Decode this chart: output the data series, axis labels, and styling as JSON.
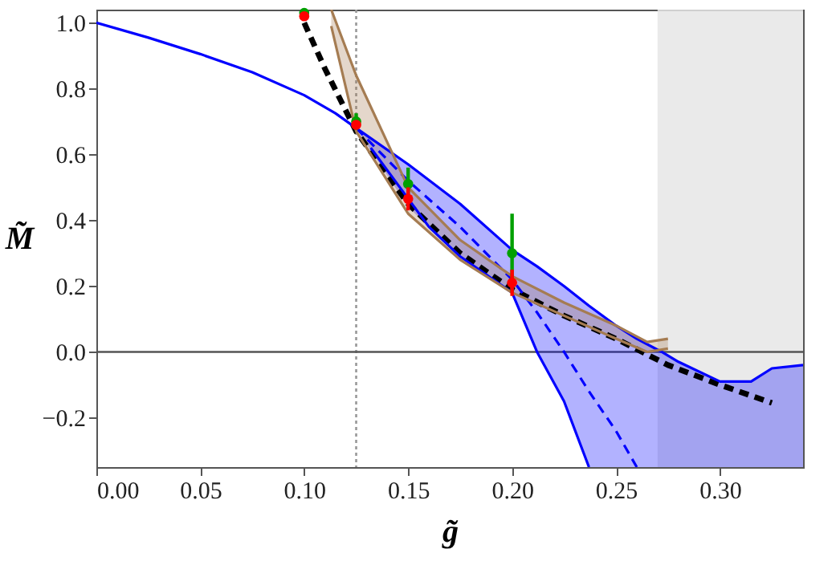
{
  "chart_data": {
    "type": "line",
    "xlabel": "g̃",
    "ylabel": "M̃",
    "xlim": [
      0,
      0.34
    ],
    "ylim": [
      -0.35,
      1.04
    ],
    "xticks": [
      {
        "value": 0,
        "label": "0.00"
      },
      {
        "value": 0.05,
        "label": "0.05"
      },
      {
        "value": 0.1,
        "label": "0.10"
      },
      {
        "value": 0.15,
        "label": "0.15"
      },
      {
        "value": 0.2,
        "label": "0.20"
      },
      {
        "value": 0.25,
        "label": "0.25"
      },
      {
        "value": 0.3,
        "label": "0.30"
      }
    ],
    "yticks": [
      {
        "value": -0.2,
        "label": "−0.2"
      },
      {
        "value": 0,
        "label": "0.0"
      },
      {
        "value": 0.2,
        "label": "0.2"
      },
      {
        "value": 0.4,
        "label": "0.4"
      },
      {
        "value": 0.6,
        "label": "0.6"
      },
      {
        "value": 0.8,
        "label": "0.8"
      },
      {
        "value": 1,
        "label": "1.0"
      }
    ],
    "grid": false,
    "legend": false,
    "bands": [
      {
        "axis": "x",
        "from": 0.27,
        "to": 0.34,
        "color": "#e6e6e6"
      }
    ],
    "ref_lines": [
      {
        "axis": "x",
        "value": 0.125,
        "color": "#999999",
        "line_style": "dotted"
      },
      {
        "axis": "y",
        "value": 0,
        "color": "#555555",
        "line_style": "solid"
      }
    ],
    "series": [
      {
        "color": "#000000",
        "line_style": "dashed",
        "x": [
          0.1,
          0.11,
          0.125,
          0.15,
          0.175,
          0.2,
          0.225,
          0.25,
          0.275,
          0.3,
          0.325
        ],
        "values": [
          1.0,
          0.86,
          0.67,
          0.45,
          0.3,
          0.19,
          0.11,
          0.04,
          -0.04,
          -0.1,
          -0.155
        ]
      },
      {
        "color": "#0000ff",
        "line_style": "solid",
        "x": [
          0,
          0.025,
          0.05,
          0.075,
          0.1,
          0.115,
          0.125
        ],
        "values": [
          1.0,
          0.955,
          0.905,
          0.85,
          0.78,
          0.725,
          0.68
        ]
      },
      {
        "color": "#0000ff",
        "line_style": "dashed",
        "x": [
          0.125,
          0.15,
          0.175,
          0.2,
          0.212,
          0.225,
          0.237,
          0.25,
          0.26,
          0.272,
          0.28,
          0.3,
          0.315,
          0.325,
          0.34
        ],
        "values": [
          0.68,
          0.52,
          0.38,
          0.22,
          0.12,
          0.0,
          -0.12,
          -0.24,
          -0.35,
          null,
          null,
          null,
          null,
          null,
          null
        ],
        "lower": [
          0.68,
          0.44,
          0.29,
          0.18,
          0.0,
          -0.15,
          -0.35,
          -0.35,
          -0.35,
          -0.35,
          -0.35,
          -0.35,
          -0.35,
          -0.35,
          -0.35
        ],
        "upper": [
          0.68,
          0.57,
          0.45,
          0.31,
          0.26,
          0.2,
          0.14,
          0.08,
          0.04,
          0.0,
          -0.03,
          -0.09,
          -0.09,
          -0.05,
          -0.04
        ]
      },
      {
        "color": "#0000ff",
        "line_style": "solid",
        "x": [
          0.132,
          0.16,
          0.175,
          0.2,
          0.212,
          0.225,
          0.237
        ],
        "values": [
          0.62,
          0.38,
          0.29,
          0.18,
          0.0,
          -0.15,
          -0.35
        ]
      },
      {
        "color": "#0000ff",
        "line_style": "solid",
        "x": [
          0.125,
          0.15,
          0.175,
          0.2,
          0.212,
          0.225,
          0.237,
          0.25,
          0.26,
          0.272,
          0.28,
          0.3,
          0.315,
          0.325,
          0.34
        ],
        "values": [
          0.68,
          0.57,
          0.45,
          0.31,
          0.26,
          0.2,
          0.14,
          0.08,
          0.04,
          0.0,
          -0.03,
          -0.09,
          -0.09,
          -0.05,
          -0.04
        ]
      },
      {
        "color": "#a57c52",
        "line_style": "solid",
        "x": [
          0.113,
          0.125,
          0.15,
          0.175,
          0.2,
          0.225,
          0.25,
          0.265,
          0.275
        ],
        "values": [
          0.99,
          0.67,
          0.42,
          0.28,
          0.18,
          0.11,
          0.04,
          0.0,
          0.01
        ],
        "lower": [
          0.99,
          0.67,
          0.42,
          0.28,
          0.18,
          0.11,
          0.04,
          0.0,
          0.01
        ],
        "upper": [
          1.04,
          0.84,
          0.5,
          0.34,
          0.23,
          0.15,
          0.08,
          0.03,
          0.04
        ]
      },
      {
        "color": "#a57c52",
        "line_style": "solid",
        "x": [
          0.113,
          0.125,
          0.15,
          0.175,
          0.2,
          0.225,
          0.25,
          0.265,
          0.275
        ],
        "values": [
          1.04,
          0.84,
          0.5,
          0.34,
          0.23,
          0.15,
          0.08,
          0.03,
          0.04
        ]
      },
      {
        "type": "scatter",
        "color": "#00a000",
        "marker": "circle",
        "x": [
          0.1,
          0.125,
          0.15,
          0.2
        ],
        "values": [
          1.03,
          0.7,
          0.51,
          0.3
        ],
        "errors": [
          0.01,
          0.025,
          0.05,
          0.12
        ]
      },
      {
        "type": "scatter",
        "color": "#ff0000",
        "marker": "circle",
        "x": [
          0.1,
          0.125,
          0.15,
          0.2
        ],
        "values": [
          1.02,
          0.69,
          0.465,
          0.21
        ],
        "errors": [
          0.01,
          0.01,
          0.035,
          0.04
        ]
      }
    ]
  }
}
